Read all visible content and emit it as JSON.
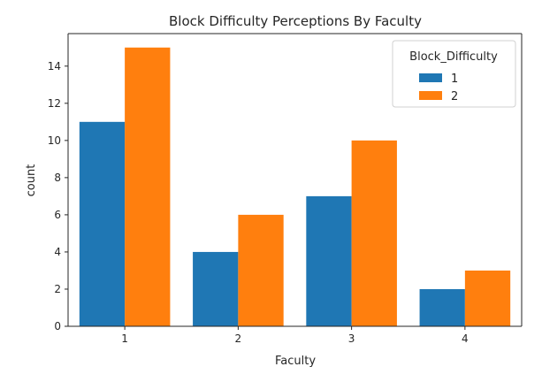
{
  "chart_data": {
    "type": "bar",
    "title": "Block Difficulty Perceptions By Faculty",
    "xlabel": "Faculty",
    "ylabel": "count",
    "categories": [
      "1",
      "2",
      "3",
      "4"
    ],
    "series": [
      {
        "name": "1",
        "values": [
          11,
          4,
          7,
          2
        ],
        "color": "#1f77b4"
      },
      {
        "name": "2",
        "values": [
          15,
          6,
          10,
          3
        ],
        "color": "#ff7f0e"
      }
    ],
    "ylim": [
      0,
      15.75
    ],
    "yticks": [
      0,
      2,
      4,
      6,
      8,
      10,
      12,
      14
    ],
    "legend": {
      "title": "Block_Difficulty",
      "placement": "top-right"
    },
    "grid": false
  }
}
